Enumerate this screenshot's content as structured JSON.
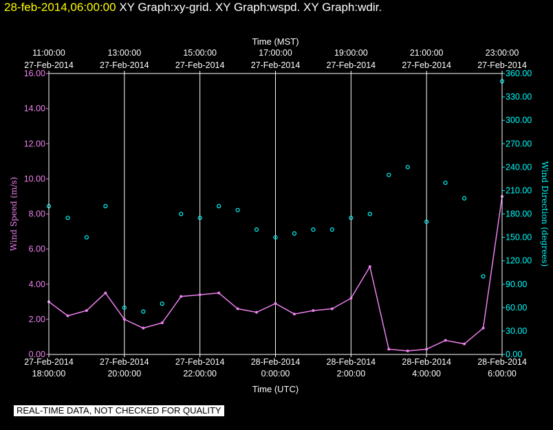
{
  "header": {
    "date_label": "28-feb-2014,06:00:00",
    "graphs_label": "XY Graph:xy-grid.  XY Graph:wspd.  XY Graph:wdir."
  },
  "disclaimer": "REAL-TIME DATA, NOT CHECKED FOR QUALITY",
  "colors": {
    "wind_speed": "#ee82ee",
    "wind_direction": "#00ffff",
    "title_date": "#ffff00",
    "grid": "#ffffff"
  },
  "chart_data": {
    "type": "scatter",
    "top_axis": {
      "title": "Time (MST)",
      "ticks": [
        {
          "time": "11:00:00",
          "date": "27-Feb-2014"
        },
        {
          "time": "13:00:00",
          "date": "27-Feb-2014"
        },
        {
          "time": "15:00:00",
          "date": "27-Feb-2014"
        },
        {
          "time": "17:00:00",
          "date": "27-Feb-2014"
        },
        {
          "time": "19:00:00",
          "date": "27-Feb-2014"
        },
        {
          "time": "21:00:00",
          "date": "27-Feb-2014"
        },
        {
          "time": "23:00:00",
          "date": "27-Feb-2014"
        }
      ]
    },
    "bottom_axis": {
      "title": "Time (UTC)",
      "ticks": [
        {
          "date": "27-Feb-2014",
          "time": "18:00:00"
        },
        {
          "date": "27-Feb-2014",
          "time": "20:00:00"
        },
        {
          "date": "27-Feb-2014",
          "time": "22:00:00"
        },
        {
          "date": "28-Feb-2014",
          "time": "0:00:00"
        },
        {
          "date": "28-Feb-2014",
          "time": "2:00:00"
        },
        {
          "date": "28-Feb-2014",
          "time": "4:00:00"
        },
        {
          "date": "28-Feb-2014",
          "time": "6:00:00"
        }
      ],
      "xlim_hours_utc": [
        18,
        30
      ]
    },
    "left_axis": {
      "title": "Wind Speed (m/s)",
      "ylim": [
        0,
        16
      ],
      "ticks": [
        "0.00",
        "2.00",
        "4.00",
        "6.00",
        "8.00",
        "10.00",
        "12.00",
        "14.00",
        "16.00"
      ]
    },
    "right_axis": {
      "title": "Wind Direction (degrees)",
      "ylim": [
        0,
        360
      ],
      "ticks": [
        "0.00",
        "30.00",
        "60.00",
        "90.00",
        "120.00",
        "150.00",
        "180.00",
        "210.00",
        "240.00",
        "270.00",
        "300.00",
        "330.00",
        "360.00"
      ]
    },
    "grid": true,
    "series": [
      {
        "name": "wspd",
        "style": "line",
        "x_hours_utc": [
          18.0,
          18.5,
          19.0,
          19.5,
          20.0,
          20.5,
          21.0,
          21.5,
          22.0,
          22.5,
          23.0,
          23.5,
          24.0,
          24.5,
          25.0,
          25.5,
          26.0,
          26.5,
          27.0,
          27.5,
          28.0,
          28.5,
          29.0,
          29.5,
          30.0
        ],
        "values": [
          3.0,
          2.2,
          2.5,
          3.5,
          2.0,
          1.5,
          1.8,
          3.3,
          3.4,
          3.5,
          2.6,
          2.4,
          2.9,
          2.3,
          2.5,
          2.6,
          3.2,
          5.0,
          0.3,
          0.2,
          0.3,
          0.8,
          0.6,
          1.5,
          9.0
        ]
      },
      {
        "name": "wdir",
        "style": "markers",
        "x_hours_utc": [
          18.0,
          18.5,
          19.0,
          19.5,
          20.0,
          20.5,
          21.0,
          21.5,
          22.0,
          22.5,
          23.0,
          23.5,
          24.0,
          24.5,
          25.0,
          25.5,
          26.0,
          26.5,
          27.0,
          27.5,
          28.0,
          28.5,
          29.0,
          29.5,
          30.0
        ],
        "values": [
          190,
          175,
          150,
          190,
          60,
          55,
          65,
          180,
          175,
          190,
          185,
          160,
          150,
          155,
          160,
          160,
          175,
          180,
          230,
          240,
          170,
          220,
          200,
          100,
          350
        ]
      }
    ]
  }
}
